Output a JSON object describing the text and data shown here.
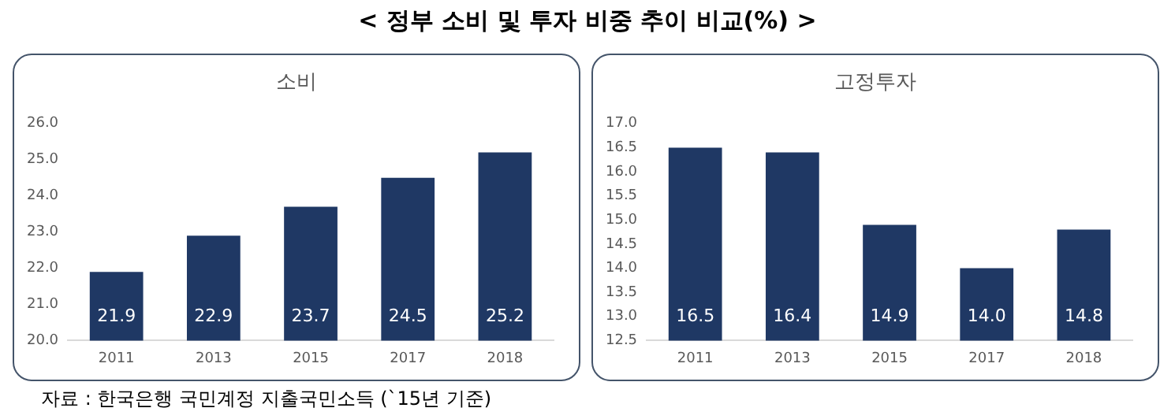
{
  "chart_data": [
    {
      "type": "bar",
      "title": "소비",
      "categories": [
        "2011",
        "2013",
        "2015",
        "2017",
        "2018"
      ],
      "values": [
        21.9,
        22.9,
        23.7,
        24.5,
        25.2
      ],
      "value_labels": [
        "21.9",
        "22.9",
        "23.7",
        "24.5",
        "25.2"
      ],
      "color": "#1f3864",
      "ylim": [
        20,
        26
      ],
      "yticks": [
        {
          "value": 20,
          "label": "20.0"
        },
        {
          "value": 21,
          "label": "21.0"
        },
        {
          "value": 22,
          "label": "22.0"
        },
        {
          "value": 23,
          "label": "23.0"
        },
        {
          "value": 24,
          "label": "24.0"
        },
        {
          "value": 25,
          "label": "25.0"
        },
        {
          "value": 26,
          "label": "26.0"
        }
      ],
      "grid": false,
      "annotations": [
        "< 정부 소비 및 투자 비중 추이 비교(%) >",
        "자료 : 한국은행 국민계정 지출국민소득 (`15년 기준)"
      ]
    },
    {
      "type": "bar",
      "title": "고정투자",
      "categories": [
        "2011",
        "2013",
        "2015",
        "2017",
        "2018"
      ],
      "values": [
        16.5,
        16.4,
        14.9,
        14.0,
        14.8
      ],
      "value_labels": [
        "16.5",
        "16.4",
        "14.9",
        "14.0",
        "14.8"
      ],
      "color": "#1f3864",
      "ylim": [
        12.5,
        17
      ],
      "yticks": [
        {
          "value": 12.5,
          "label": "12.5"
        },
        {
          "value": 13,
          "label": "13.0"
        },
        {
          "value": 13.5,
          "label": "13.5"
        },
        {
          "value": 14,
          "label": "14.0"
        },
        {
          "value": 14.5,
          "label": "14.5"
        },
        {
          "value": 15,
          "label": "15.0"
        },
        {
          "value": 15.5,
          "label": "15.5"
        },
        {
          "value": 16,
          "label": "16.0"
        },
        {
          "value": 16.5,
          "label": "16.5"
        },
        {
          "value": 17,
          "label": "17.0"
        }
      ],
      "grid": false
    }
  ]
}
